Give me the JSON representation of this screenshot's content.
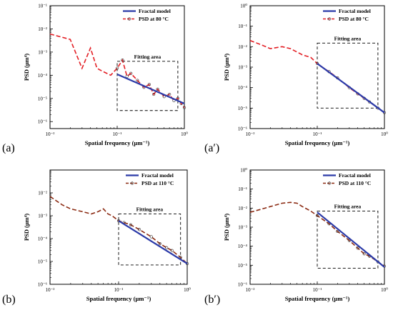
{
  "chart_data": [
    {
      "type": "line",
      "panel_label": "(a)",
      "xlabel": "Spatial frequency (μm⁻¹)",
      "ylabel": "PSD (μm⁴)",
      "xscale": "log",
      "yscale": "log",
      "xlim": [
        0.01,
        1
      ],
      "ylim": [
        5e-07,
        0.1
      ],
      "xticks": [
        "10⁻²",
        "10⁻¹",
        "10⁰"
      ],
      "yticks": [
        "10⁻⁶",
        "10⁻⁵",
        "10⁻⁴",
        "10⁻³",
        "10⁻²",
        "10⁻¹"
      ],
      "legend": {
        "position": "top-right",
        "entries": [
          "Fractal model",
          "PSD at 80 °C"
        ]
      },
      "annotation": "Fitting area",
      "fitting_area": {
        "x": [
          0.1,
          0.8
        ],
        "y": [
          3e-06,
          0.0004
        ]
      },
      "series": [
        {
          "name": "PSD at 80 °C",
          "style": "dashed-markers",
          "x": [
            0.01,
            0.02,
            0.03,
            0.04,
            0.05,
            0.06,
            0.08,
            0.1,
            0.12,
            0.14,
            0.16,
            0.2,
            0.25,
            0.3,
            0.35,
            0.4,
            0.5,
            0.6,
            0.7,
            0.8,
            0.9,
            1.0
          ],
          "y": [
            0.006,
            0.0035,
            0.0002,
            0.0015,
            0.0002,
            0.00015,
            0.0001,
            0.0002,
            0.00045,
            9e-05,
            0.00012,
            6e-05,
            3e-05,
            4e-05,
            1.5e-05,
            2.5e-05,
            1.2e-05,
            1.5e-05,
            8e-06,
            1e-05,
            6e-06,
            4e-06
          ]
        },
        {
          "name": "Fractal model",
          "style": "solid",
          "x": [
            0.1,
            1.0
          ],
          "y": [
            0.00011,
            6e-06
          ]
        }
      ]
    },
    {
      "type": "line",
      "panel_label": "(a′)",
      "xlabel": "Spatial frequency (μm⁻¹)",
      "ylabel": "PSD (μm⁴)",
      "xscale": "log",
      "yscale": "log",
      "xlim": [
        0.01,
        1
      ],
      "ylim": [
        1e-06,
        1
      ],
      "xticks": [
        "10⁻²",
        "10⁻¹",
        "10⁰"
      ],
      "yticks": [
        "10⁻⁶",
        "10⁻⁵",
        "10⁻⁴",
        "10⁻³",
        "10⁻²",
        "10⁻¹",
        "10⁰"
      ],
      "legend": {
        "position": "top-right",
        "entries": [
          "Fractal model",
          "PSD at 80 °C"
        ]
      },
      "annotation": "Fitting area",
      "fitting_area": {
        "x": [
          0.1,
          0.8
        ],
        "y": [
          1e-05,
          0.015
        ]
      },
      "series": [
        {
          "name": "PSD at 80 °C",
          "style": "dashed-markers",
          "x": [
            0.01,
            0.015,
            0.02,
            0.03,
            0.04,
            0.06,
            0.08,
            0.1,
            0.15,
            0.2,
            0.3,
            0.4,
            0.5,
            0.6,
            0.8,
            1.0
          ],
          "y": [
            0.02,
            0.012,
            0.008,
            0.01,
            0.008,
            0.004,
            0.003,
            0.0015,
            0.0006,
            0.0003,
            0.0001,
            5e-05,
            3e-05,
            2e-05,
            1e-05,
            6e-06
          ]
        },
        {
          "name": "Fractal model",
          "style": "solid",
          "x": [
            0.1,
            1.0
          ],
          "y": [
            0.0015,
            6e-06
          ]
        }
      ]
    },
    {
      "type": "line",
      "panel_label": "(b)",
      "xlabel": "Spatial frequency (μm⁻¹)",
      "ylabel": "PSD (μm⁴)",
      "xscale": "log",
      "yscale": "log",
      "xlim": [
        0.01,
        1
      ],
      "ylim": [
        1e-06,
        0.1
      ],
      "xticks": [
        "10⁻²",
        "10⁻¹",
        "10⁰"
      ],
      "yticks": [
        "10⁻⁶",
        "10⁻⁵",
        "10⁻⁴",
        "10⁻³",
        "10⁻²"
      ],
      "legend": {
        "position": "top-right",
        "entries": [
          "Fractal model",
          "PSD at 110 °C"
        ]
      },
      "annotation": "Fitting area",
      "fitting_area": {
        "x": [
          0.1,
          0.8
        ],
        "y": [
          7e-06,
          0.0012
        ]
      },
      "series": [
        {
          "name": "PSD at 110 °C",
          "style": "dashed-markers",
          "x": [
            0.01,
            0.015,
            0.02,
            0.03,
            0.04,
            0.05,
            0.06,
            0.07,
            0.08,
            0.1,
            0.12,
            0.15,
            0.2,
            0.3,
            0.4,
            0.5,
            0.6,
            0.8,
            1.0
          ],
          "y": [
            0.007,
            0.003,
            0.002,
            0.0015,
            0.0012,
            0.0015,
            0.002,
            0.0012,
            0.001,
            0.0006,
            0.0005,
            0.0004,
            0.00025,
            0.00012,
            6e-05,
            4e-05,
            3e-05,
            1.5e-05,
            8e-06
          ]
        },
        {
          "name": "Fractal model",
          "style": "solid",
          "x": [
            0.1,
            1.0
          ],
          "y": [
            0.0006,
            8e-06
          ]
        }
      ]
    },
    {
      "type": "line",
      "panel_label": "(b′)",
      "xlabel": "Spatial frequency (μm⁻¹)",
      "ylabel": "PSD (μm⁴)",
      "xscale": "log",
      "yscale": "log",
      "xlim": [
        0.01,
        1
      ],
      "ylim": [
        1e-06,
        1
      ],
      "xticks": [
        "10⁻²",
        "10⁻¹",
        "10⁰"
      ],
      "yticks": [
        "10⁻⁶",
        "10⁻⁵",
        "10⁻⁴",
        "10⁻³",
        "10⁻²",
        "10⁻¹",
        "10⁰"
      ],
      "legend": {
        "position": "top-right",
        "entries": [
          "Fractal model",
          "PSD at 110 °C"
        ]
      },
      "annotation": "Fitting area",
      "fitting_area": {
        "x": [
          0.1,
          0.8
        ],
        "y": [
          7e-06,
          0.007
        ]
      },
      "series": [
        {
          "name": "PSD at 110 °C",
          "style": "dashed-markers",
          "x": [
            0.01,
            0.015,
            0.02,
            0.03,
            0.04,
            0.05,
            0.06,
            0.08,
            0.1,
            0.15,
            0.2,
            0.3,
            0.4,
            0.5,
            0.6,
            0.8,
            1.0
          ],
          "y": [
            0.006,
            0.009,
            0.012,
            0.018,
            0.02,
            0.018,
            0.012,
            0.007,
            0.004,
            0.0015,
            0.0006,
            0.0002,
            8e-05,
            4e-05,
            3e-05,
            1.5e-05,
            9e-06
          ]
        },
        {
          "name": "Fractal model",
          "style": "solid",
          "x": [
            0.1,
            1.0
          ],
          "y": [
            0.006,
            8e-06
          ]
        }
      ]
    }
  ],
  "colors": {
    "model": "#2b3aa8",
    "psd_a": "#e31e24",
    "psd_b": "#8b2a12",
    "marker": "#333333",
    "frame": "#000000"
  }
}
